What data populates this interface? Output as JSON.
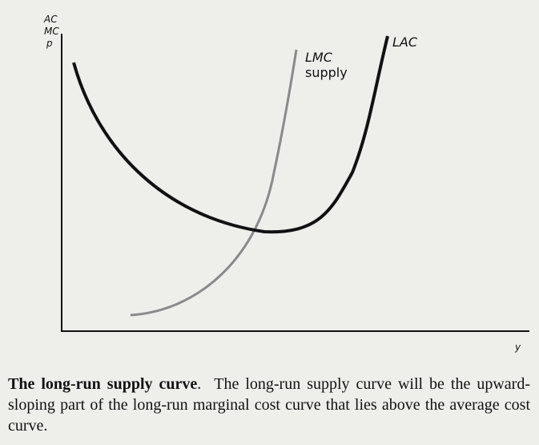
{
  "figure": {
    "axis_y_label_lines": [
      "AC",
      "MC",
      "p"
    ],
    "axis_x_label": "y",
    "curves": {
      "lac": {
        "label": "LAC",
        "color": "#111111"
      },
      "lmc": {
        "label_line1": "LMC",
        "label_line2": "supply",
        "color": "#8a8a8a"
      }
    }
  },
  "caption": {
    "title": "The long-run supply curve",
    "title_suffix": ".",
    "body": "The long-run supply curve will be the upward-sloping part of the long-run marginal cost curve that lies above the average cost curve."
  }
}
